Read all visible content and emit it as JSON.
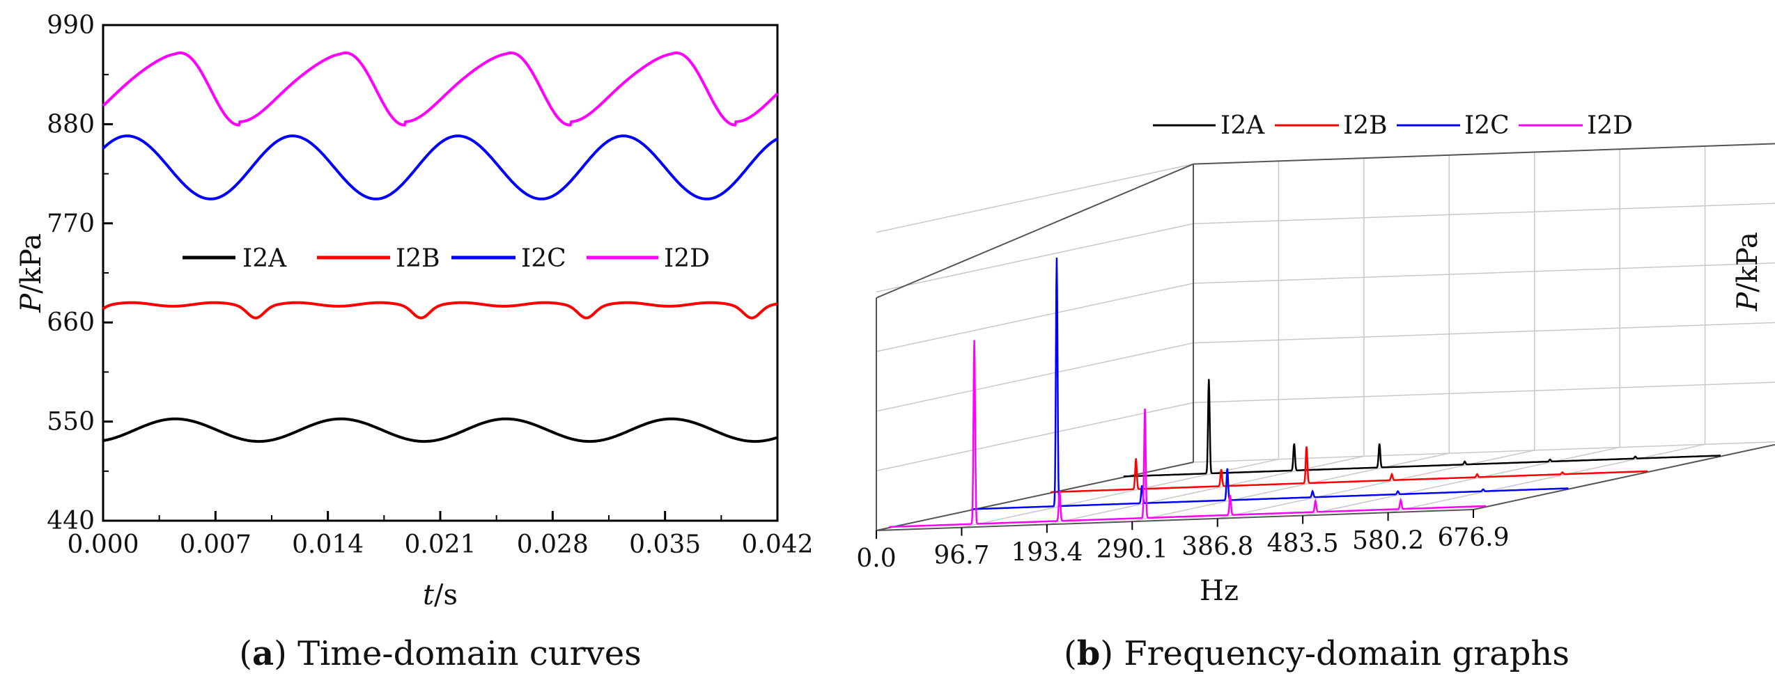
{
  "panel_a": {
    "caption_letter": "a",
    "caption_text": "Time-domain curves",
    "legend": [
      {
        "label": "I2A",
        "color": "#000000"
      },
      {
        "label": "I2B",
        "color": "#ff0000"
      },
      {
        "label": "I2C",
        "color": "#0000ff"
      },
      {
        "label": "I2D",
        "color": "#ff00ff"
      }
    ]
  },
  "panel_b": {
    "caption_letter": "b",
    "caption_text": "Frequency-domain graphs",
    "legend": [
      {
        "label": "I2A",
        "color": "#000000"
      },
      {
        "label": "I2B",
        "color": "#ff0000"
      },
      {
        "label": "I2C",
        "color": "#0000ff"
      },
      {
        "label": "I2D",
        "color": "#ff00ff"
      }
    ]
  },
  "chart_data": [
    {
      "type": "line",
      "xlabel_italic": "t",
      "xlabel_unit": "/s",
      "ylabel_italic": "P",
      "ylabel_unit": "/kPa",
      "xlim": [
        0,
        0.042
      ],
      "ylim": [
        440,
        990
      ],
      "xticks": [
        "0.000",
        "0.007",
        "0.014",
        "0.021",
        "0.028",
        "0.035",
        "0.042"
      ],
      "yticks": [
        "440",
        "550",
        "660",
        "770",
        "880",
        "990"
      ],
      "grid": false,
      "legend_position": "middle",
      "period_s": 0.0103,
      "series": [
        {
          "name": "I2A",
          "color": "#000000",
          "mean": 540,
          "min": 528,
          "max": 553,
          "peak_times": [
            0.0045,
            0.0148,
            0.0251,
            0.0354
          ],
          "trough_times": [
            0.0097,
            0.02,
            0.0303,
            0.0406
          ]
        },
        {
          "name": "I2B",
          "color": "#ff0000",
          "mean": 674,
          "min": 667,
          "max": 680,
          "dip_times": [
            0.0,
            0.0095,
            0.0198,
            0.0301,
            0.0404
          ]
        },
        {
          "name": "I2C",
          "color": "#0000ff",
          "mean": 830,
          "min": 797,
          "max": 867,
          "peak_times": [
            0.0015,
            0.0118,
            0.0221,
            0.0324
          ],
          "trough_times": [
            0.0067,
            0.017,
            0.0273,
            0.0376
          ]
        },
        {
          "name": "I2D",
          "color": "#ff00ff",
          "mean": 920,
          "min": 885,
          "max": 958,
          "peak_times": [
            0.0045,
            0.0148,
            0.0251,
            0.0354
          ],
          "trough_times": [
            0.0085,
            0.0188,
            0.0291,
            0.0394
          ]
        }
      ]
    },
    {
      "type": "line",
      "subtype": "3d-waterfall-spectrum",
      "xlabel": "Hz",
      "zlabel_italic": "P",
      "zlabel_unit": "/kPa",
      "xlim": [
        0,
        676.9
      ],
      "zlim": [
        0,
        30
      ],
      "xticks": [
        "0.0",
        "96.7",
        "193.4",
        "290.1",
        "386.8",
        "483.5",
        "580.2",
        "676.9"
      ],
      "zticks": [
        "0",
        "6",
        "12",
        "18",
        "24",
        "30"
      ],
      "grid": true,
      "legend_position": "top",
      "series": [
        {
          "name": "I2A",
          "color": "#000000",
          "peaks": [
            {
              "f": 96.7,
              "p": 9.5
            },
            {
              "f": 193.4,
              "p": 2.7
            },
            {
              "f": 290.1,
              "p": 2.4
            },
            {
              "f": 386.8,
              "p": 0.3
            },
            {
              "f": 483.5,
              "p": 0.2
            },
            {
              "f": 580.2,
              "p": 0.2
            }
          ]
        },
        {
          "name": "I2B",
          "color": "#ff0000",
          "peaks": [
            {
              "f": 96.7,
              "p": 3.1
            },
            {
              "f": 193.4,
              "p": 1.7
            },
            {
              "f": 290.1,
              "p": 3.7
            },
            {
              "f": 386.8,
              "p": 0.6
            },
            {
              "f": 483.5,
              "p": 0.3
            },
            {
              "f": 580.2,
              "p": 0.2
            }
          ]
        },
        {
          "name": "I2C",
          "color": "#0000ff",
          "peaks": [
            {
              "f": 96.7,
              "p": 25.0
            },
            {
              "f": 193.4,
              "p": 1.8
            },
            {
              "f": 290.1,
              "p": 3.2
            },
            {
              "f": 386.8,
              "p": 0.6
            },
            {
              "f": 483.5,
              "p": 0.3
            },
            {
              "f": 580.2,
              "p": 0.2
            }
          ]
        },
        {
          "name": "I2D",
          "color": "#ff00ff",
          "peaks": [
            {
              "f": 96.7,
              "p": 18.5
            },
            {
              "f": 193.4,
              "p": 3.0
            },
            {
              "f": 290.1,
              "p": 11.0
            },
            {
              "f": 386.8,
              "p": 2.0
            },
            {
              "f": 483.5,
              "p": 1.1
            },
            {
              "f": 580.2,
              "p": 0.9
            }
          ]
        }
      ]
    }
  ]
}
